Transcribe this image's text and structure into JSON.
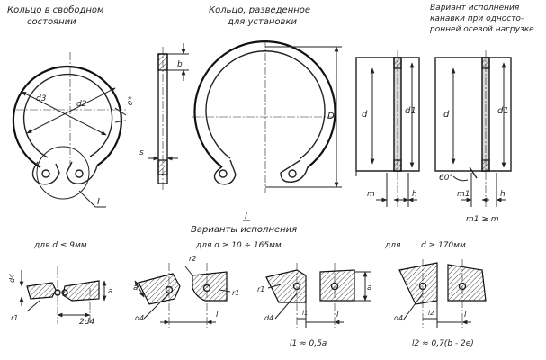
{
  "captions": {
    "free_ring": [
      "Кольцо в свободном",
      "состоянии"
    ],
    "spread_ring": [
      "Кольцо, разведенное",
      "для установки"
    ],
    "groove_variant": [
      "Вариант исполнения",
      "канавки при односто-",
      "ронней осевой нагрузке"
    ],
    "variants_header_num": "I",
    "variants_header": "Варианты исполнения",
    "variant_a": "для d ≤ 9мм",
    "variant_b": "для d ≥ 10 ÷ 165мм",
    "variant_c_prefix": "для",
    "variant_c_cond": "d ≥ 170мм",
    "detail_ref": "I"
  },
  "labels": {
    "d3": "d3",
    "d2": "d2",
    "e": "e*",
    "b": "b",
    "s": "s",
    "D": "D",
    "d": "d",
    "d1": "d1",
    "m": "m",
    "h": "h",
    "m1": "m1",
    "angle": "60°",
    "m1_rel": "m1 ≥ m",
    "d4": "d4",
    "r1": "r1",
    "r2": "r2",
    "a": "a",
    "l": "l",
    "two_d4": "2d4",
    "l1": "l1",
    "l2": "l2",
    "l1_formula": "l1 ≈ 0,5a",
    "l2_formula": "l2 ≈ 0,7(b - 2e)"
  }
}
